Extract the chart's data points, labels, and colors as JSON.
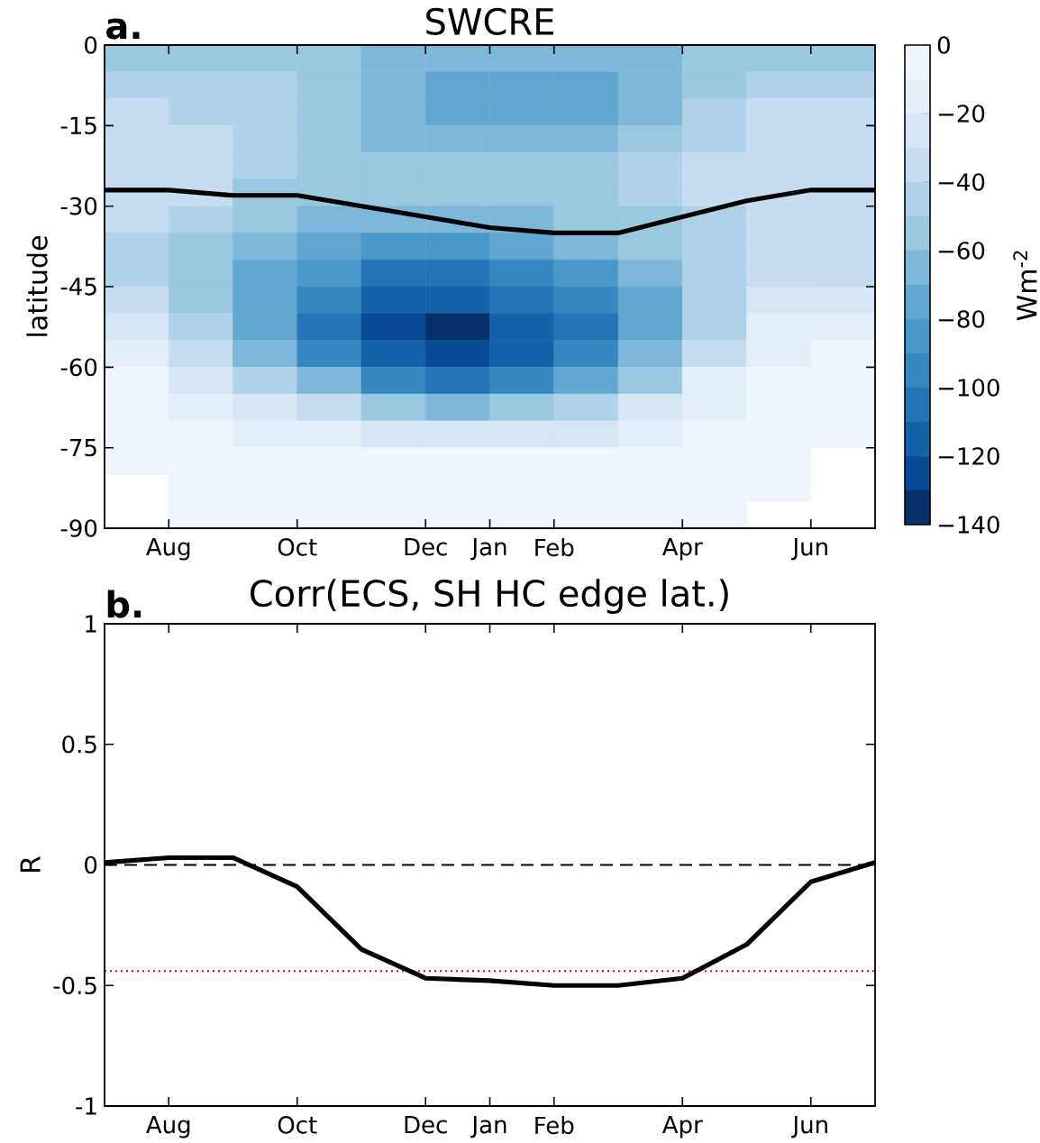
{
  "chart_data": [
    {
      "type": "heatmap",
      "title": "SWCRE",
      "annotations": [
        "a."
      ],
      "categories": [
        null,
        null,
        null,
        null,
        null,
        null,
        null,
        null,
        null,
        null,
        null,
        null
      ],
      "y_categories": [
        null,
        null,
        null,
        null,
        null,
        null,
        null,
        null,
        null,
        null,
        null,
        null,
        null,
        null,
        null,
        null,
        null,
        null
      ],
      "cells": [
        [
          -55,
          -55,
          -55,
          -55,
          -65,
          -65,
          -65,
          -65,
          -65,
          -55,
          -55,
          -55
        ],
        [
          -45,
          -45,
          -45,
          -55,
          -65,
          -75,
          -75,
          -75,
          -65,
          -55,
          -45,
          -45
        ],
        [
          -35,
          -45,
          -45,
          -55,
          -65,
          -75,
          -75,
          -75,
          -65,
          -45,
          -35,
          -35
        ],
        [
          -35,
          -35,
          -45,
          -55,
          -65,
          -65,
          -65,
          -65,
          -55,
          -45,
          -35,
          -35
        ],
        [
          -35,
          -35,
          -45,
          -55,
          -55,
          -55,
          -55,
          -55,
          -45,
          -35,
          -35,
          -35
        ],
        [
          -35,
          -35,
          -55,
          -55,
          -55,
          -55,
          -55,
          -55,
          -45,
          -35,
          -35,
          -35
        ],
        [
          -35,
          -45,
          -55,
          -65,
          -65,
          -65,
          -65,
          -55,
          -55,
          -45,
          -35,
          -35
        ],
        [
          -45,
          -55,
          -65,
          -75,
          -85,
          -85,
          -75,
          -65,
          -55,
          -45,
          -35,
          -35
        ],
        [
          -45,
          -55,
          -75,
          -85,
          -105,
          -105,
          -95,
          -85,
          -65,
          -45,
          -35,
          -35
        ],
        [
          -35,
          -55,
          -75,
          -95,
          -115,
          -115,
          -105,
          -95,
          -75,
          -45,
          -25,
          -25
        ],
        [
          -25,
          -45,
          -75,
          -105,
          -125,
          -135,
          -115,
          -105,
          -75,
          -45,
          -15,
          -15
        ],
        [
          -15,
          -35,
          -65,
          -95,
          -115,
          -125,
          -115,
          -95,
          -65,
          -35,
          -15,
          -5
        ],
        [
          -5,
          -25,
          -45,
          -65,
          -95,
          -105,
          -95,
          -75,
          -55,
          -15,
          -5,
          -5
        ],
        [
          -5,
          -15,
          -25,
          -35,
          -55,
          -65,
          -55,
          -45,
          -25,
          -15,
          -5,
          -5
        ],
        [
          -5,
          -5,
          -15,
          -15,
          -25,
          -25,
          -25,
          -25,
          -15,
          -5,
          -5,
          -5
        ],
        [
          -5,
          -5,
          -5,
          -5,
          -5,
          -5,
          -5,
          -5,
          -5,
          -5,
          -5,
          null
        ],
        [
          null,
          -5,
          -5,
          -5,
          -5,
          -5,
          -5,
          -5,
          -5,
          -5,
          -5,
          null
        ],
        [
          null,
          -5,
          -5,
          -5,
          -5,
          -5,
          -5,
          -5,
          -5,
          -5,
          null,
          null
        ]
      ],
      "clim": [
        -140,
        0
      ],
      "clabel": "Wm$^{-2}$",
      "cticks": [
        {
          "value": -140,
          "label": "−140"
        },
        {
          "value": -120,
          "label": "−120"
        },
        {
          "value": -100,
          "label": "−100"
        },
        {
          "value": -80,
          "label": "−80"
        },
        {
          "value": -60,
          "label": "−60"
        },
        {
          "value": -40,
          "label": "−40"
        },
        {
          "value": -20,
          "label": "−20"
        },
        0
      ]
    },
    {
      "type": "line",
      "ylabel": "latitude",
      "categories": [
        null,
        "Aug",
        null,
        "Oct",
        null,
        "Dec",
        "Jan",
        "Feb",
        null,
        "Apr",
        null,
        "Jun",
        null
      ],
      "ylim": [
        -90,
        0
      ],
      "yticks": [
        -90,
        -75,
        -60,
        -45,
        -30,
        -15,
        0
      ],
      "series": [
        {
          "color": "#000000",
          "values": [
            -27,
            -27,
            -28,
            -28,
            -30,
            -32,
            -34,
            -35,
            -35,
            -32,
            -29,
            -27,
            -27
          ]
        }
      ]
    },
    {
      "type": "line",
      "title": "Corr(ECS, SH HC edge lat.)",
      "annotations": [
        "b."
      ],
      "ylabel": "R",
      "categories": [
        null,
        "Aug",
        null,
        "Oct",
        null,
        "Dec",
        "Jan",
        "Feb",
        null,
        "Apr",
        null,
        "Jun",
        null
      ],
      "ylim": [
        -1,
        1
      ],
      "yticks": [
        -1,
        -0.5,
        0,
        0.5,
        1
      ],
      "series": [
        {
          "color": "#000000",
          "values": [
            0.01,
            0.03,
            0.03,
            -0.09,
            -0.35,
            -0.47,
            -0.48,
            -0.5,
            -0.5,
            -0.47,
            -0.33,
            -0.07,
            0.01
          ]
        }
      ],
      "ref_lines": [
        {
          "axis": "y",
          "value": 0,
          "color": "#000000",
          "line_style": "dashed"
        },
        {
          "axis": "y",
          "value": -0.44,
          "color": "#ff0000",
          "line_style": "dotted"
        }
      ]
    }
  ]
}
